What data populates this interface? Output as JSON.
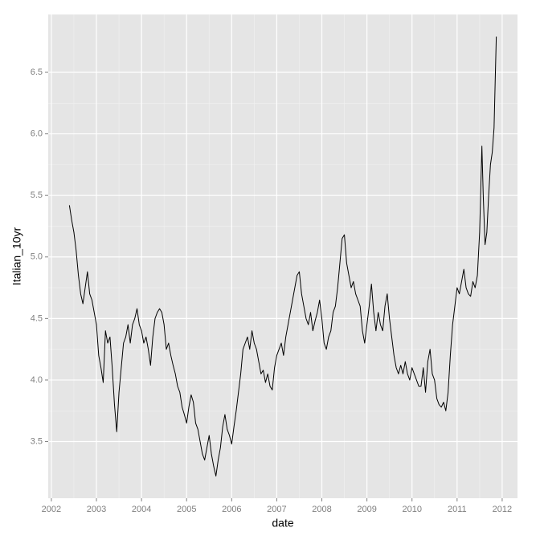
{
  "chart_data": {
    "type": "line",
    "x_label": "date",
    "y_label": "Italian_10yr",
    "color": "#000000",
    "grid": true,
    "xlim": [
      2001.93,
      2012.34
    ],
    "xticks": [
      2002,
      2003,
      2004,
      2005,
      2006,
      2007,
      2008,
      2009,
      2010,
      2011,
      2012
    ],
    "ylim": [
      3.04,
      6.97
    ],
    "yticks": [
      3.5,
      4.0,
      4.5,
      5.0,
      5.5,
      6.0,
      6.5
    ],
    "x": [
      2002.4,
      2002.45,
      2002.5,
      2002.55,
      2002.6,
      2002.65,
      2002.7,
      2002.75,
      2002.8,
      2002.85,
      2002.9,
      2002.95,
      2003.0,
      2003.05,
      2003.1,
      2003.15,
      2003.2,
      2003.25,
      2003.3,
      2003.35,
      2003.4,
      2003.45,
      2003.5,
      2003.55,
      2003.6,
      2003.65,
      2003.7,
      2003.75,
      2003.8,
      2003.85,
      2003.9,
      2003.95,
      2004.0,
      2004.05,
      2004.1,
      2004.15,
      2004.2,
      2004.25,
      2004.3,
      2004.35,
      2004.4,
      2004.45,
      2004.5,
      2004.55,
      2004.6,
      2004.65,
      2004.7,
      2004.75,
      2004.8,
      2004.85,
      2004.9,
      2004.95,
      2005.0,
      2005.05,
      2005.1,
      2005.15,
      2005.2,
      2005.25,
      2005.3,
      2005.35,
      2005.4,
      2005.45,
      2005.5,
      2005.55,
      2005.6,
      2005.65,
      2005.7,
      2005.75,
      2005.8,
      2005.85,
      2005.9,
      2005.95,
      2006.0,
      2006.05,
      2006.1,
      2006.15,
      2006.2,
      2006.25,
      2006.3,
      2006.35,
      2006.4,
      2006.45,
      2006.5,
      2006.55,
      2006.6,
      2006.65,
      2006.7,
      2006.75,
      2006.8,
      2006.85,
      2006.9,
      2006.95,
      2007.0,
      2007.05,
      2007.1,
      2007.15,
      2007.2,
      2007.25,
      2007.3,
      2007.35,
      2007.4,
      2007.45,
      2007.5,
      2007.55,
      2007.6,
      2007.65,
      2007.7,
      2007.75,
      2007.8,
      2007.85,
      2007.9,
      2007.95,
      2008.0,
      2008.05,
      2008.1,
      2008.15,
      2008.2,
      2008.25,
      2008.3,
      2008.35,
      2008.4,
      2008.45,
      2008.5,
      2008.55,
      2008.6,
      2008.65,
      2008.7,
      2008.75,
      2008.8,
      2008.85,
      2008.9,
      2008.95,
      2009.0,
      2009.05,
      2009.1,
      2009.15,
      2009.2,
      2009.25,
      2009.3,
      2009.35,
      2009.4,
      2009.45,
      2009.5,
      2009.55,
      2009.6,
      2009.65,
      2009.7,
      2009.75,
      2009.8,
      2009.85,
      2009.9,
      2009.95,
      2010.0,
      2010.05,
      2010.1,
      2010.15,
      2010.2,
      2010.25,
      2010.3,
      2010.35,
      2010.4,
      2010.45,
      2010.5,
      2010.55,
      2010.6,
      2010.65,
      2010.7,
      2010.75,
      2010.8,
      2010.85,
      2010.9,
      2010.95,
      2011.0,
      2011.05,
      2011.1,
      2011.15,
      2011.2,
      2011.25,
      2011.3,
      2011.35,
      2011.4,
      2011.45,
      2011.5,
      2011.55,
      2011.58,
      2011.62,
      2011.66,
      2011.7,
      2011.74,
      2011.78,
      2011.82,
      2011.85,
      2011.87
    ],
    "values": [
      5.42,
      5.3,
      5.2,
      5.05,
      4.85,
      4.7,
      4.62,
      4.75,
      4.88,
      4.7,
      4.65,
      4.55,
      4.45,
      4.2,
      4.1,
      3.98,
      4.4,
      4.3,
      4.35,
      4.1,
      3.8,
      3.58,
      3.9,
      4.1,
      4.3,
      4.35,
      4.45,
      4.3,
      4.45,
      4.5,
      4.58,
      4.45,
      4.4,
      4.3,
      4.35,
      4.25,
      4.12,
      4.35,
      4.5,
      4.55,
      4.58,
      4.55,
      4.45,
      4.25,
      4.3,
      4.2,
      4.12,
      4.05,
      3.95,
      3.9,
      3.78,
      3.72,
      3.65,
      3.78,
      3.88,
      3.82,
      3.65,
      3.6,
      3.5,
      3.4,
      3.35,
      3.45,
      3.55,
      3.4,
      3.3,
      3.22,
      3.35,
      3.45,
      3.62,
      3.72,
      3.6,
      3.55,
      3.48,
      3.62,
      3.75,
      3.9,
      4.05,
      4.25,
      4.3,
      4.35,
      4.25,
      4.4,
      4.3,
      4.25,
      4.15,
      4.05,
      4.08,
      3.98,
      4.05,
      3.95,
      3.92,
      4.1,
      4.2,
      4.25,
      4.3,
      4.2,
      4.35,
      4.45,
      4.55,
      4.65,
      4.75,
      4.85,
      4.88,
      4.7,
      4.6,
      4.5,
      4.45,
      4.55,
      4.4,
      4.48,
      4.55,
      4.65,
      4.5,
      4.3,
      4.25,
      4.35,
      4.4,
      4.55,
      4.6,
      4.75,
      4.95,
      5.15,
      5.18,
      4.95,
      4.85,
      4.75,
      4.8,
      4.7,
      4.65,
      4.6,
      4.4,
      4.3,
      4.45,
      4.6,
      4.78,
      4.55,
      4.4,
      4.55,
      4.45,
      4.4,
      4.6,
      4.7,
      4.5,
      4.35,
      4.2,
      4.1,
      4.05,
      4.12,
      4.05,
      4.15,
      4.05,
      4.0,
      4.1,
      4.05,
      4.0,
      3.95,
      3.95,
      4.1,
      3.9,
      4.15,
      4.25,
      4.05,
      4.0,
      3.85,
      3.8,
      3.78,
      3.82,
      3.75,
      3.9,
      4.2,
      4.45,
      4.6,
      4.75,
      4.7,
      4.8,
      4.9,
      4.75,
      4.7,
      4.68,
      4.8,
      4.75,
      4.85,
      5.2,
      5.9,
      5.5,
      5.1,
      5.2,
      5.5,
      5.75,
      5.85,
      6.05,
      6.5,
      6.79
    ]
  }
}
